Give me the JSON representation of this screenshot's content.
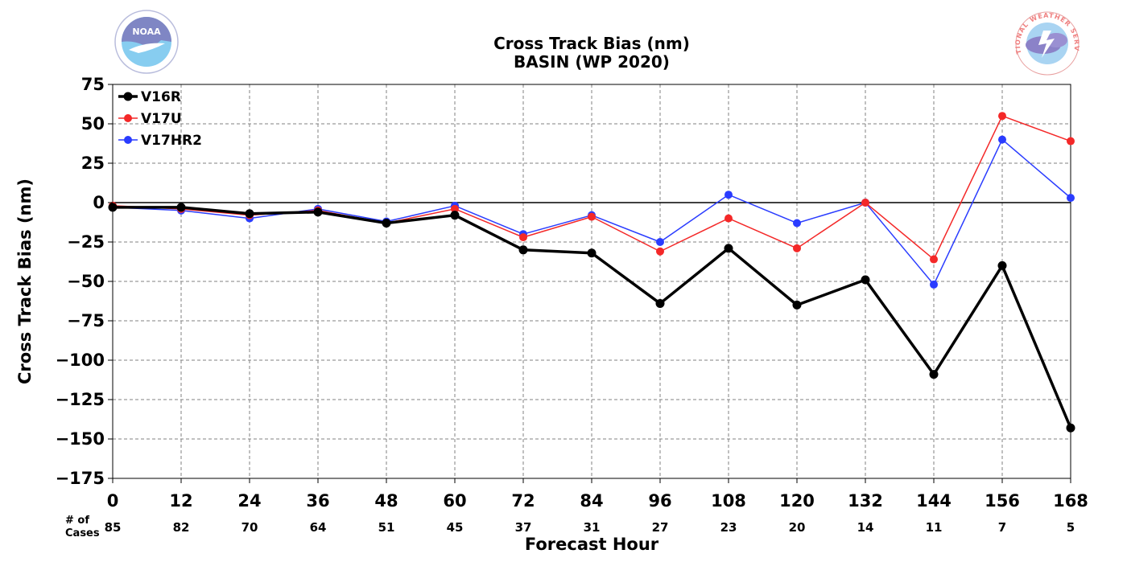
{
  "logos": {
    "left_text": "NOAA",
    "right_text": "NATIONAL WEATHER SERVICE"
  },
  "colors": {
    "grid": "#808080",
    "zero_line": "#000000",
    "noaa_dark": "#7f86c4",
    "noaa_light": "#87cdf0",
    "nws_text": "#ef7f7f"
  },
  "chart_data": {
    "type": "line",
    "title": "Cross Track Bias (nm)",
    "subtitle": "BASIN (WP 2020)",
    "xlabel": "Forecast Hour",
    "ylabel": "Cross Track Bias (nm)",
    "xlim": [
      0,
      168
    ],
    "ylim": [
      -175,
      75
    ],
    "x": [
      0,
      12,
      24,
      36,
      48,
      60,
      72,
      84,
      96,
      108,
      120,
      132,
      144,
      156,
      168
    ],
    "x_tick_labels": [
      "0",
      "12",
      "24",
      "36",
      "48",
      "60",
      "72",
      "84",
      "96",
      "108",
      "120",
      "132",
      "144",
      "156",
      "168"
    ],
    "y_ticks": [
      75,
      50,
      25,
      0,
      -25,
      -50,
      -75,
      -100,
      -125,
      -150,
      -175
    ],
    "y_tick_labels": [
      "75",
      "50",
      "25",
      "0",
      "−25",
      "−50",
      "−75",
      "−100",
      "−125",
      "−150",
      "−175"
    ],
    "grid": true,
    "legend_position": "top-left",
    "cases_label_line1": "# of",
    "cases_label_line2": "Cases",
    "cases": [
      "85",
      "82",
      "70",
      "64",
      "51",
      "45",
      "37",
      "31",
      "27",
      "23",
      "20",
      "14",
      "11",
      "7",
      "5"
    ],
    "series": [
      {
        "name": "V17HR2",
        "color": "#2a3cff",
        "line_width": 1.5,
        "marker_radius": 5,
        "values": [
          -3,
          -5,
          -10,
          -4,
          -12,
          -2,
          -20,
          -8,
          -25,
          5,
          -13,
          0,
          -52,
          40,
          3
        ]
      },
      {
        "name": "V17U",
        "color": "#f42828",
        "line_width": 1.5,
        "marker_radius": 5,
        "values": [
          -2,
          -4,
          -8,
          -5,
          -13,
          -4,
          -22,
          -9,
          -31,
          -10,
          -29,
          0,
          -36,
          55,
          39
        ]
      },
      {
        "name": "V16R",
        "color": "#000000",
        "line_width": 3.5,
        "marker_radius": 5.5,
        "values": [
          -3,
          -3,
          -7,
          -6,
          -13,
          -8,
          -30,
          -32,
          -64,
          -29,
          -65,
          -49,
          -109,
          -40,
          -143
        ]
      }
    ]
  }
}
